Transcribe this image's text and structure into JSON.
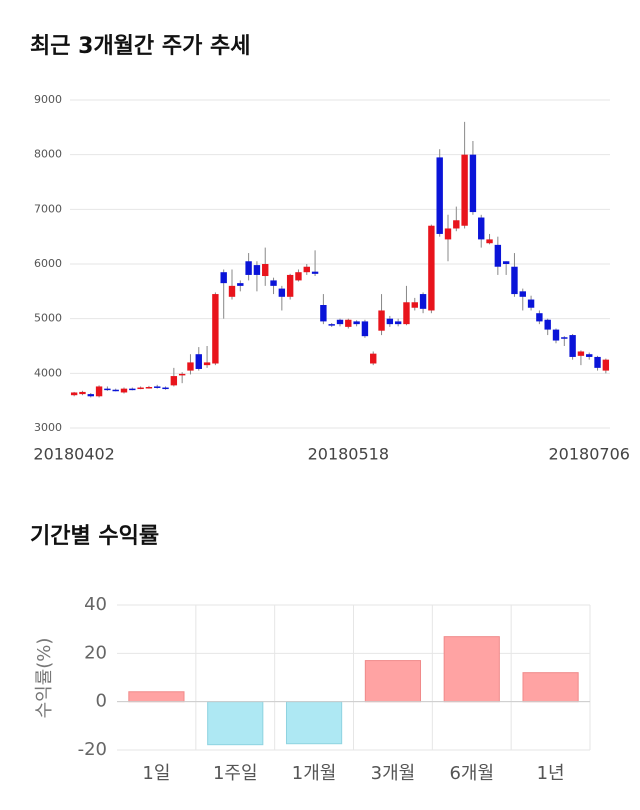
{
  "chart_data": [
    {
      "type": "candlestick",
      "title": "최근 3개월간 주가 추세",
      "categories": [
        "20180402",
        null,
        null,
        null,
        null,
        null,
        null,
        null,
        null,
        null,
        null,
        null,
        null,
        null,
        null,
        null,
        null,
        null,
        null,
        null,
        null,
        null,
        null,
        null,
        null,
        null,
        null,
        null,
        null,
        null,
        null,
        null,
        null,
        "20180518",
        null,
        null,
        null,
        null,
        null,
        null,
        null,
        null,
        null,
        null,
        null,
        null,
        null,
        null,
        null,
        null,
        null,
        null,
        null,
        null,
        null,
        null,
        null,
        null,
        null,
        null,
        null,
        null,
        "20180706",
        null,
        null
      ],
      "open": [
        3600,
        3620,
        3620,
        3580,
        3720,
        3700,
        3650,
        3720,
        3730,
        3740,
        3760,
        3740,
        3780,
        3980,
        4050,
        4350,
        4150,
        4180,
        5850,
        5400,
        5650,
        6050,
        5980,
        5780,
        5700,
        5550,
        5400,
        5700,
        5850,
        5860,
        5250,
        4900,
        4980,
        4850,
        4950,
        4950,
        4180,
        4780,
        5000,
        4950,
        4900,
        5200,
        5450,
        5150,
        7950,
        6450,
        6650,
        6700,
        8000,
        6850,
        6380,
        6350,
        6050,
        5950,
        5500,
        5350,
        5100,
        4980,
        4800,
        4660,
        4700,
        4320,
        4350,
        4300,
        4050
      ],
      "high": [
        3660,
        3680,
        3640,
        3780,
        3760,
        3720,
        3740,
        3740,
        3760,
        3770,
        3790,
        3760,
        4100,
        4020,
        4350,
        4480,
        4500,
        5480,
        5900,
        5900,
        5700,
        6200,
        6050,
        6300,
        5750,
        5600,
        5820,
        5900,
        6000,
        6250,
        5450,
        4920,
        5000,
        5000,
        4970,
        4980,
        4400,
        5450,
        5050,
        5000,
        5600,
        5380,
        5480,
        6720,
        8100,
        6900,
        7050,
        8600,
        8250,
        6900,
        6550,
        6500,
        6050,
        6200,
        5550,
        5420,
        5150,
        5000,
        4820,
        4680,
        4720,
        4420,
        4380,
        4320,
        4270
      ],
      "low": [
        3580,
        3600,
        3560,
        3560,
        3680,
        3670,
        3630,
        3690,
        3710,
        3720,
        3720,
        3700,
        3760,
        3820,
        3980,
        4050,
        4100,
        4150,
        5000,
        5350,
        5500,
        5700,
        5500,
        5600,
        5450,
        5150,
        5350,
        5680,
        5800,
        5780,
        4900,
        4850,
        4860,
        4820,
        4860,
        4650,
        4150,
        4700,
        4850,
        4860,
        4880,
        5150,
        5100,
        5100,
        6500,
        6050,
        6600,
        6650,
        6900,
        6300,
        6360,
        5800,
        5800,
        5400,
        5150,
        5150,
        4900,
        4700,
        4550,
        4500,
        4250,
        4150,
        4250,
        4050,
        4000
      ],
      "close": [
        3650,
        3660,
        3580,
        3760,
        3710,
        3690,
        3720,
        3710,
        3740,
        3750,
        3750,
        3720,
        3950,
        3990,
        4200,
        4080,
        4200,
        5450,
        5650,
        5600,
        5600,
        5800,
        5800,
        6000,
        5600,
        5400,
        5800,
        5850,
        5950,
        5820,
        4950,
        4880,
        4900,
        4980,
        4900,
        4680,
        4360,
        5150,
        4900,
        4900,
        5300,
        5300,
        5180,
        6700,
        6550,
        6650,
        6800,
        8000,
        6950,
        6450,
        6450,
        5950,
        6000,
        5450,
        5400,
        5200,
        4950,
        4800,
        4600,
        4640,
        4300,
        4400,
        4300,
        4100,
        4250
      ],
      "up_color": "#e8141c",
      "down_color": "#0a14d8",
      "ylim": [
        3000,
        9000
      ],
      "yticks": [
        3000,
        4000,
        5000,
        6000,
        7000,
        8000,
        9000
      ],
      "grid": true
    },
    {
      "type": "bar",
      "title": "기간별 수익률",
      "ylabel": "수익률(%)",
      "categories": [
        "1일",
        "1주일",
        "1개월",
        "3개월",
        "6개월",
        "1년"
      ],
      "values": [
        4.1,
        -17.8,
        -17.4,
        17,
        26.9,
        12
      ],
      "positive_color": "#ffa3a3",
      "negative_color": "#aee8f3",
      "ylim": [
        -20,
        40
      ],
      "yticks": [
        -20,
        0,
        20,
        40
      ],
      "grid": true
    }
  ]
}
